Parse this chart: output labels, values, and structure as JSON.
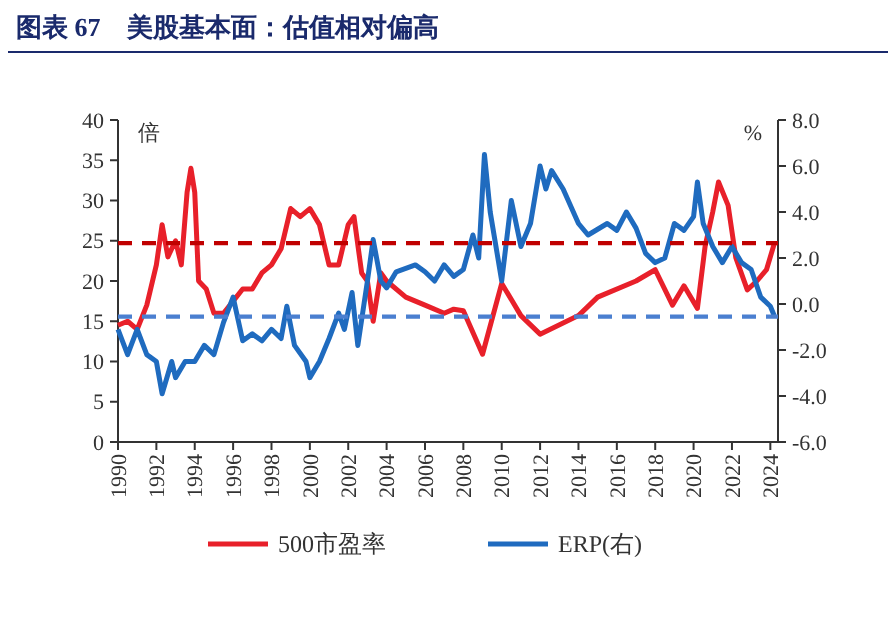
{
  "chart_data": {
    "type": "line",
    "title": "图表 67    美股基本面：估值相对偏高",
    "ylabel": "倍",
    "y2label": "%",
    "xlim": [
      1990,
      2024.4
    ],
    "xticks": [
      1990,
      1992,
      1994,
      1996,
      1998,
      2000,
      2002,
      2004,
      2006,
      2008,
      2010,
      2012,
      2014,
      2016,
      2018,
      2020,
      2022,
      2024
    ],
    "ylim": [
      0,
      40
    ],
    "yticks": [
      0,
      5,
      10,
      15,
      20,
      25,
      30,
      35,
      40
    ],
    "y2lim": [
      -6,
      8
    ],
    "y2ticks": [
      {
        "value": -6,
        "label": "-6.0"
      },
      {
        "value": -4,
        "label": "-4.0"
      },
      {
        "value": -2,
        "label": "-2.0"
      },
      {
        "value": 0,
        "label": "0.0"
      },
      {
        "value": 2,
        "label": "2.0"
      },
      {
        "value": 4,
        "label": "4.0"
      },
      {
        "value": 6,
        "label": "6.0"
      },
      {
        "value": 8,
        "label": "8.0"
      }
    ],
    "legend": "bottom",
    "grid": false,
    "ref_lines": [
      {
        "axis": "y",
        "value": 24.7,
        "color": "#c00000",
        "line_style": "dashed"
      },
      {
        "axis": "y2",
        "value": -0.55,
        "color": "#4a7fd0",
        "line_style": "dashed"
      }
    ],
    "series": [
      {
        "name": "500市盈率",
        "color": "#e8202a",
        "x": [
          1990,
          1990.5,
          1991,
          1991.5,
          1992,
          1992.3,
          1992.6,
          1993,
          1993.3,
          1993.6,
          1993.8,
          1994,
          1994.2,
          1994.6,
          1995,
          1995.5,
          1996,
          1996.5,
          1997,
          1997.5,
          1998,
          1998.5,
          1999,
          1999.5,
          2000,
          2000.5,
          2001,
          2001.5,
          2002,
          2002.3,
          2002.7,
          2003,
          2003.3,
          2003.7,
          2004,
          2005,
          2006,
          2007,
          2007.5,
          2008,
          2009,
          2010,
          2011,
          2012,
          2014,
          2015,
          2017,
          2018,
          2018.9,
          2019.5,
          2020.2,
          2020.6,
          2021,
          2021.3,
          2021.8,
          2022.2,
          2022.8,
          2023.3,
          2023.8,
          2024.2
        ],
        "values": [
          14.5,
          15,
          14,
          17,
          22,
          27,
          23,
          25,
          22,
          31,
          34,
          31,
          20,
          19,
          16,
          16,
          17.5,
          19,
          19,
          21,
          22,
          24,
          29,
          28,
          29,
          27,
          22,
          22,
          27,
          28,
          21,
          20,
          15,
          21,
          20,
          18,
          17,
          16,
          16.5,
          16.3,
          10.9,
          19.7,
          15.7,
          13.4,
          15.7,
          18,
          20,
          21.4,
          17,
          19.4,
          16.6,
          24.3,
          28.6,
          32.3,
          29.4,
          22.9,
          18.9,
          20,
          21.4,
          24.6
        ]
      },
      {
        "name": "ERP(右)",
        "color": "#1f6bbf",
        "axis": "y2",
        "x": [
          1990,
          1990.5,
          1991,
          1991.5,
          1992,
          1992.3,
          1992.8,
          1993,
          1993.5,
          1994,
          1994.5,
          1995,
          1995.5,
          1996,
          1996.5,
          1997,
          1997.5,
          1998,
          1998.5,
          1998.8,
          1999.2,
          1999.8,
          2000,
          2000.5,
          2001,
          2001.5,
          2001.8,
          2002.2,
          2002.5,
          2003,
          2003.3,
          2003.7,
          2004,
          2004.5,
          2005.5,
          2006,
          2006.5,
          2007,
          2007.5,
          2008,
          2008.5,
          2008.8,
          2009.1,
          2009.4,
          2009.8,
          2010,
          2010.5,
          2011,
          2011.5,
          2012,
          2012.3,
          2012.6,
          2013.2,
          2014,
          2014.5,
          2015.5,
          2016,
          2016.5,
          2017,
          2017.5,
          2018,
          2018.5,
          2019,
          2019.5,
          2020,
          2020.2,
          2020.5,
          2021,
          2021.5,
          2022,
          2022.5,
          2023,
          2023.5,
          2024,
          2024.2
        ],
        "values": [
          -1.1,
          -2.2,
          -1.1,
          -2.2,
          -2.5,
          -3.9,
          -2.5,
          -3.2,
          -2.5,
          -2.5,
          -1.8,
          -2.2,
          -0.8,
          0.3,
          -1.6,
          -1.3,
          -1.6,
          -1.1,
          -1.5,
          -0.1,
          -1.8,
          -2.5,
          -3.2,
          -2.5,
          -1.5,
          -0.4,
          -1.1,
          0.5,
          -1.8,
          1.0,
          2.8,
          1.0,
          0.7,
          1.4,
          1.7,
          1.4,
          1.0,
          1.7,
          1.2,
          1.5,
          3.0,
          2.0,
          6.5,
          4.0,
          2.0,
          1.0,
          4.5,
          2.5,
          3.5,
          6.0,
          5.0,
          5.8,
          5.0,
          3.5,
          3.0,
          3.5,
          3.2,
          4.0,
          3.3,
          2.2,
          1.8,
          2.0,
          3.5,
          3.2,
          3.8,
          5.3,
          3.5,
          2.5,
          1.8,
          2.5,
          1.8,
          1.5,
          0.3,
          -0.1,
          -0.5
        ]
      }
    ]
  }
}
